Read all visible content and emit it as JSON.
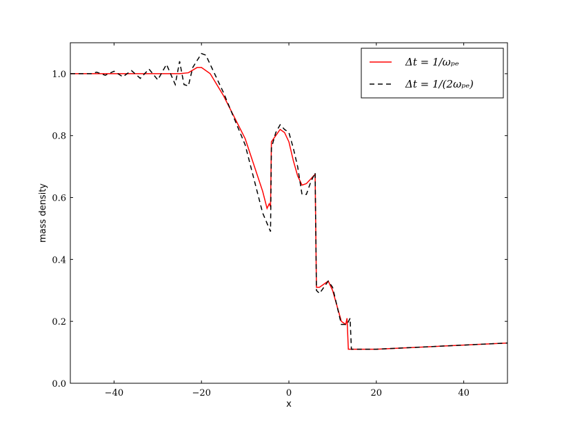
{
  "chart_data": {
    "type": "line",
    "xlabel": "x",
    "ylabel": "mass density",
    "xlim": [
      -50,
      50
    ],
    "ylim": [
      0,
      1.1
    ],
    "xticks": [
      {
        "value": -40,
        "label": "−40"
      },
      {
        "value": -20,
        "label": "−20"
      },
      0,
      20,
      40
    ],
    "yticks": [
      {
        "value": 0,
        "label": "0.0"
      },
      0.2,
      0.4,
      0.6,
      0.8,
      {
        "value": 1,
        "label": "1.0"
      }
    ],
    "legend": "upper right",
    "series": [
      {
        "name": "Δt = 1/ωₚₑ",
        "color": "#ff0000",
        "linestyle": "solid",
        "x": [
          -50,
          -25,
          -23,
          -21,
          -20,
          -18,
          -15,
          -10,
          -6,
          -5,
          -4.5,
          -4.2,
          -4,
          -3,
          -2,
          -1,
          0,
          1,
          2,
          3,
          4,
          5,
          6,
          6.3,
          7,
          8,
          9,
          10,
          12,
          13,
          13.3,
          13.6,
          20,
          50
        ],
        "values": [
          1.0,
          1.0,
          1.003,
          1.02,
          1.02,
          1.0,
          0.93,
          0.79,
          0.62,
          0.565,
          0.58,
          0.57,
          0.78,
          0.8,
          0.82,
          0.81,
          0.78,
          0.72,
          0.67,
          0.64,
          0.645,
          0.66,
          0.675,
          0.31,
          0.31,
          0.32,
          0.33,
          0.3,
          0.2,
          0.19,
          0.21,
          0.11,
          0.11,
          0.13
        ]
      },
      {
        "name": "Δt = 1/(2ωₚₑ)",
        "color": "#000000",
        "linestyle": "dashed",
        "x": [
          -50,
          -45,
          -44,
          -42,
          -40,
          -38,
          -36,
          -34,
          -32,
          -30,
          -28,
          -26,
          -25,
          -24,
          -23,
          -22,
          -20,
          -19,
          -17,
          -15,
          -10,
          -6,
          -4.5,
          -4.2,
          -4,
          -3,
          -2,
          -1,
          0,
          1,
          2,
          3,
          4,
          5,
          6,
          6.3,
          7,
          8,
          9,
          10,
          12,
          13,
          13.3,
          14,
          14.3,
          20,
          50
        ],
        "values": [
          1.0,
          1.0,
          1.005,
          0.995,
          1.008,
          0.99,
          1.01,
          0.985,
          1.015,
          0.98,
          1.03,
          0.965,
          1.04,
          0.965,
          0.96,
          1.02,
          1.065,
          1.06,
          1.0,
          0.94,
          0.77,
          0.55,
          0.5,
          0.49,
          0.76,
          0.81,
          0.835,
          0.82,
          0.81,
          0.76,
          0.7,
          0.61,
          0.61,
          0.65,
          0.68,
          0.3,
          0.29,
          0.31,
          0.33,
          0.31,
          0.19,
          0.19,
          0.19,
          0.21,
          0.11,
          0.11,
          0.13
        ]
      }
    ]
  }
}
